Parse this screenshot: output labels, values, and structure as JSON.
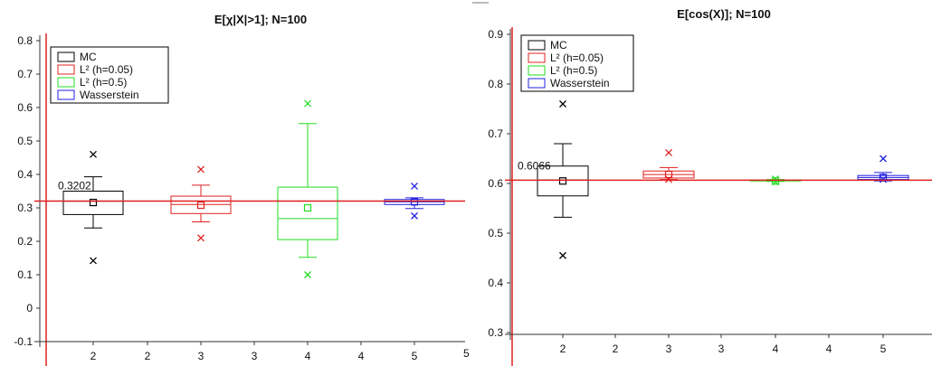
{
  "chart_data": [
    {
      "type": "box",
      "title": "E[χ|X|>1]; N=100",
      "y_ticks": [
        "0.8",
        "0.7",
        "0.6",
        "0.5",
        "0.4",
        "0.3",
        "0.2",
        "0.1",
        "0",
        "-0.1"
      ],
      "x_ticks": [
        "2",
        "2",
        "3",
        "3",
        "4",
        "4",
        "5"
      ],
      "ylim": [
        -0.1,
        0.8
      ],
      "reference_line": 0.3202,
      "reference_label": "0.3202",
      "legend": {
        "placement": "top-left",
        "entries": [
          "MC",
          "L² (h=0.05)",
          "L² (h=0.5)",
          "Wasserstein"
        ]
      },
      "series": [
        {
          "name": "MC",
          "color": "#000000",
          "x": 2,
          "box_low": 0.28,
          "box_high": 0.35,
          "median": 0.32,
          "mean": 0.316,
          "whisker_low": 0.24,
          "whisker_high": 0.393,
          "outliers": [
            0.46,
            0.142
          ]
        },
        {
          "name": "L² (h=0.05)",
          "color": "#e02020",
          "x": 3,
          "box_low": 0.283,
          "box_high": 0.335,
          "median": 0.31,
          "mean": 0.308,
          "whisker_low": 0.258,
          "whisker_high": 0.368,
          "outliers": [
            0.415,
            0.21
          ]
        },
        {
          "name": "L² (h=0.5)",
          "color": "#22dd22",
          "x": 4,
          "box_low": 0.205,
          "box_high": 0.362,
          "median": 0.268,
          "mean": 0.3,
          "whisker_low": 0.152,
          "whisker_high": 0.552,
          "outliers": [
            0.612,
            0.1
          ]
        },
        {
          "name": "Wasserstein",
          "color": "#2020e0",
          "x": 5,
          "box_low": 0.31,
          "box_high": 0.325,
          "median": 0.318,
          "mean": 0.318,
          "whisker_low": 0.298,
          "whisker_high": 0.33,
          "outliers": [
            0.365,
            0.276
          ]
        }
      ]
    },
    {
      "type": "box",
      "title": "E[cos(X)]; N=100",
      "y_ticks": [
        "0.9",
        "0.8",
        "0.7",
        "0.6",
        "0.5",
        "0.4",
        "0.3"
      ],
      "x_ticks": [
        "2",
        "2",
        "3",
        "3",
        "4",
        "4",
        "5"
      ],
      "ylim": [
        0.3,
        0.9
      ],
      "reference_line": 0.6066,
      "reference_label": "0.6066",
      "legend": {
        "placement": "top-left",
        "entries": [
          "MC",
          "L² (h=0.05)",
          "L² (h=0.5)",
          "Wasserstein"
        ]
      },
      "series": [
        {
          "name": "MC",
          "color": "#000000",
          "x": 2,
          "box_low": 0.575,
          "box_high": 0.635,
          "median": 0.607,
          "mean": 0.605,
          "whisker_low": 0.532,
          "whisker_high": 0.68,
          "outliers": [
            0.76,
            0.455
          ]
        },
        {
          "name": "L² (h=0.05)",
          "color": "#e02020",
          "x": 3,
          "box_low": 0.611,
          "box_high": 0.625,
          "median": 0.618,
          "mean": 0.618,
          "whisker_low": 0.608,
          "whisker_high": 0.632,
          "outliers": [
            0.662,
            0.608
          ]
        },
        {
          "name": "L² (h=0.5)",
          "color": "#22dd22",
          "x": 4,
          "box_low": 0.605,
          "box_high": 0.607,
          "median": 0.606,
          "mean": 0.605,
          "whisker_low": 0.604,
          "whisker_high": 0.608,
          "outliers": [
            0.609,
            0.603
          ]
        },
        {
          "name": "Wasserstein",
          "color": "#2020e0",
          "x": 5,
          "box_low": 0.608,
          "box_high": 0.616,
          "median": 0.612,
          "mean": 0.612,
          "whisker_low": 0.605,
          "whisker_high": 0.622,
          "outliers": [
            0.65,
            0.608
          ]
        }
      ]
    }
  ]
}
